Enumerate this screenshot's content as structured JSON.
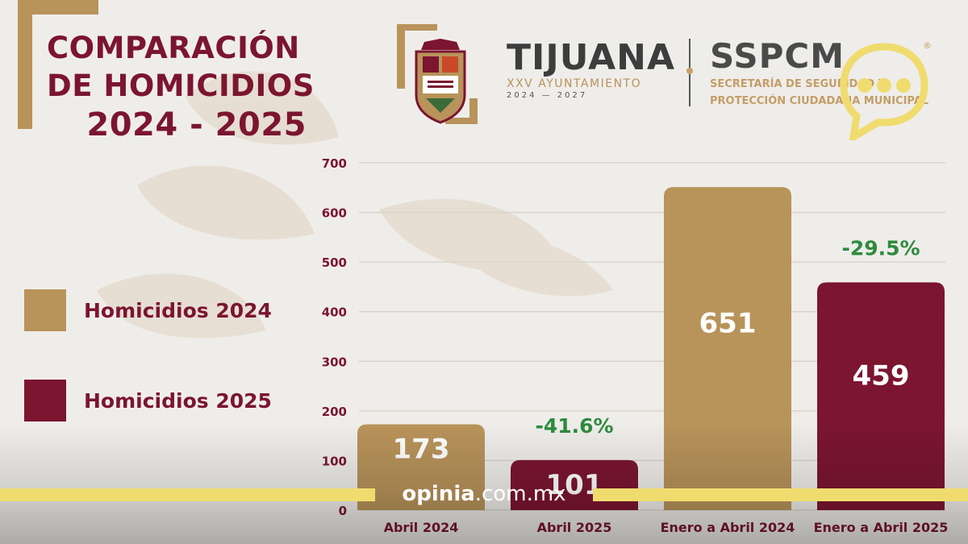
{
  "title": {
    "line1": "COMPARACIÓN",
    "line2": "DE HOMICIDIOS",
    "line3": "2024 - 2025"
  },
  "header": {
    "municipality": "TIJUANA",
    "ayuntamiento": "XXV AYUNTAMIENTO",
    "period": "2024 — 2027",
    "agency": "SSPCM",
    "agency_line1": "SECRETARÍA DE SEGURIDAD Y",
    "agency_line2": "PROTECCIÓN CIUDADANA MUNICIPAL",
    "registered": "®"
  },
  "legend": [
    {
      "label": "Homicidios 2024",
      "color": "#b8935a"
    },
    {
      "label": "Homicidios 2025",
      "color": "#7b1530"
    }
  ],
  "watermark": {
    "brand": "opinia",
    "domain": ".com.mx"
  },
  "colors": {
    "accent_2024": "#b8935a",
    "accent_2025": "#7b1530",
    "change": "#2e8b3e",
    "watermark_bar": "#f0dc6e"
  },
  "chart_data": {
    "type": "bar",
    "categories": [
      "Abril 2024",
      "Abril 2025",
      "Enero a Abril 2024",
      "Enero a Abril 2025"
    ],
    "values": [
      173,
      101,
      651,
      459
    ],
    "series_of_bar": [
      "Homicidios 2024",
      "Homicidios 2025",
      "Homicidios 2024",
      "Homicidios 2025"
    ],
    "value_labels": [
      "173",
      "101",
      "651",
      "459"
    ],
    "change_labels": [
      "",
      "-41.6%",
      "",
      "-29.5%"
    ],
    "y_ticks": [
      "0",
      "100",
      "200",
      "300",
      "400",
      "500",
      "600",
      "700"
    ],
    "ylim": [
      0,
      700
    ],
    "grid": true,
    "legend_position": "left"
  }
}
